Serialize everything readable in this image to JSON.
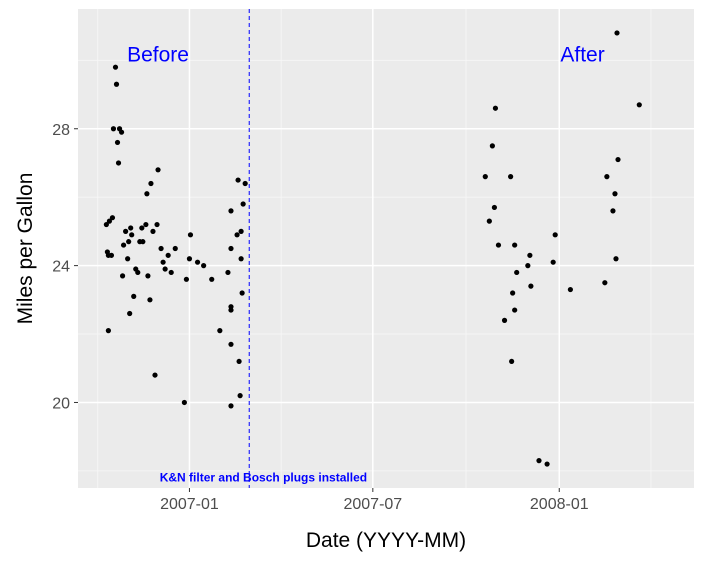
{
  "chart_data": {
    "type": "scatter",
    "title": "",
    "xlabel": "Date (YYYY-MM)",
    "ylabel": "Miles per Gallon",
    "x_range": [
      "2006-09-13",
      "2008-05-13"
    ],
    "y_range": [
      17.5,
      31.5
    ],
    "x_ticks": [
      "2007-01",
      "2007-07",
      "2008-01"
    ],
    "x_tick_values": [
      "2007-01-01",
      "2007-07-01",
      "2008-01-01"
    ],
    "y_ticks": [
      20,
      24,
      28
    ],
    "grid": true,
    "background": "#ebebeb",
    "point_color": "#000000",
    "annotation_color": "#0000ff",
    "points": [
      {
        "x": "2006-10-11",
        "y": 25.2
      },
      {
        "x": "2006-10-12",
        "y": 24.4
      },
      {
        "x": "2006-10-13",
        "y": 24.3
      },
      {
        "x": "2006-10-13",
        "y": 22.1
      },
      {
        "x": "2006-10-14",
        "y": 25.3
      },
      {
        "x": "2006-10-16",
        "y": 24.3
      },
      {
        "x": "2006-10-17",
        "y": 25.4
      },
      {
        "x": "2006-10-18",
        "y": 28.0
      },
      {
        "x": "2006-10-20",
        "y": 29.8
      },
      {
        "x": "2006-10-21",
        "y": 29.3
      },
      {
        "x": "2006-10-22",
        "y": 27.6
      },
      {
        "x": "2006-10-23",
        "y": 27.0
      },
      {
        "x": "2006-10-24",
        "y": 28.0
      },
      {
        "x": "2006-10-26",
        "y": 27.9
      },
      {
        "x": "2006-10-27",
        "y": 23.7
      },
      {
        "x": "2006-10-28",
        "y": 24.6
      },
      {
        "x": "2006-10-30",
        "y": 25.0
      },
      {
        "x": "2006-11-01",
        "y": 24.2
      },
      {
        "x": "2006-11-02",
        "y": 24.7
      },
      {
        "x": "2006-11-03",
        "y": 22.6
      },
      {
        "x": "2006-11-04",
        "y": 25.1
      },
      {
        "x": "2006-11-05",
        "y": 24.9
      },
      {
        "x": "2006-11-07",
        "y": 23.1
      },
      {
        "x": "2006-11-09",
        "y": 23.9
      },
      {
        "x": "2006-11-11",
        "y": 23.8
      },
      {
        "x": "2006-11-13",
        "y": 24.7
      },
      {
        "x": "2006-11-15",
        "y": 25.1
      },
      {
        "x": "2006-11-16",
        "y": 24.7
      },
      {
        "x": "2006-11-19",
        "y": 25.2
      },
      {
        "x": "2006-11-20",
        "y": 26.1
      },
      {
        "x": "2006-11-21",
        "y": 23.7
      },
      {
        "x": "2006-11-23",
        "y": 23.0
      },
      {
        "x": "2006-11-24",
        "y": 26.4
      },
      {
        "x": "2006-11-26",
        "y": 25.0
      },
      {
        "x": "2006-11-28",
        "y": 20.8
      },
      {
        "x": "2006-11-30",
        "y": 25.2
      },
      {
        "x": "2006-12-01",
        "y": 26.8
      },
      {
        "x": "2006-12-04",
        "y": 24.5
      },
      {
        "x": "2006-12-06",
        "y": 24.1
      },
      {
        "x": "2006-12-08",
        "y": 23.9
      },
      {
        "x": "2006-12-11",
        "y": 24.3
      },
      {
        "x": "2006-12-14",
        "y": 23.8
      },
      {
        "x": "2006-12-18",
        "y": 24.5
      },
      {
        "x": "2006-12-27",
        "y": 20.0
      },
      {
        "x": "2006-12-29",
        "y": 23.6
      },
      {
        "x": "2007-01-01",
        "y": 24.2
      },
      {
        "x": "2007-01-02",
        "y": 24.9
      },
      {
        "x": "2007-01-09",
        "y": 24.1
      },
      {
        "x": "2007-01-15",
        "y": 24.0
      },
      {
        "x": "2007-01-23",
        "y": 23.6
      },
      {
        "x": "2007-01-31",
        "y": 22.1
      },
      {
        "x": "2007-02-08",
        "y": 23.8
      },
      {
        "x": "2007-02-11",
        "y": 24.5
      },
      {
        "x": "2007-02-11",
        "y": 25.6
      },
      {
        "x": "2007-02-11",
        "y": 22.8
      },
      {
        "x": "2007-02-11",
        "y": 22.7
      },
      {
        "x": "2007-02-11",
        "y": 21.7
      },
      {
        "x": "2007-02-11",
        "y": 19.9
      },
      {
        "x": "2007-02-17",
        "y": 24.9
      },
      {
        "x": "2007-02-18",
        "y": 26.5
      },
      {
        "x": "2007-02-19",
        "y": 21.2
      },
      {
        "x": "2007-02-20",
        "y": 20.2
      },
      {
        "x": "2007-02-21",
        "y": 24.2
      },
      {
        "x": "2007-02-21",
        "y": 25.0
      },
      {
        "x": "2007-02-22",
        "y": 23.2
      },
      {
        "x": "2007-02-23",
        "y": 25.8
      },
      {
        "x": "2007-02-25",
        "y": 26.4
      },
      {
        "x": "2007-10-20",
        "y": 26.6
      },
      {
        "x": "2007-10-24",
        "y": 25.3
      },
      {
        "x": "2007-10-27",
        "y": 27.5
      },
      {
        "x": "2007-10-29",
        "y": 25.7
      },
      {
        "x": "2007-10-30",
        "y": 28.6
      },
      {
        "x": "2007-11-02",
        "y": 24.6
      },
      {
        "x": "2007-11-08",
        "y": 22.4
      },
      {
        "x": "2007-11-14",
        "y": 26.6
      },
      {
        "x": "2007-11-15",
        "y": 21.2
      },
      {
        "x": "2007-11-16",
        "y": 23.2
      },
      {
        "x": "2007-11-18",
        "y": 22.7
      },
      {
        "x": "2007-11-18",
        "y": 24.6
      },
      {
        "x": "2007-11-20",
        "y": 23.8
      },
      {
        "x": "2007-12-01",
        "y": 24.0
      },
      {
        "x": "2007-12-03",
        "y": 24.3
      },
      {
        "x": "2007-12-04",
        "y": 23.4
      },
      {
        "x": "2007-12-12",
        "y": 18.3
      },
      {
        "x": "2007-12-20",
        "y": 18.2
      },
      {
        "x": "2007-12-26",
        "y": 24.1
      },
      {
        "x": "2007-12-28",
        "y": 24.9
      },
      {
        "x": "2008-01-12",
        "y": 23.3
      },
      {
        "x": "2008-02-15",
        "y": 23.5
      },
      {
        "x": "2008-02-17",
        "y": 26.6
      },
      {
        "x": "2008-02-23",
        "y": 25.6
      },
      {
        "x": "2008-02-25",
        "y": 26.1
      },
      {
        "x": "2008-02-26",
        "y": 24.2
      },
      {
        "x": "2008-02-27",
        "y": 30.8
      },
      {
        "x": "2008-02-28",
        "y": 27.1
      },
      {
        "x": "2008-03-20",
        "y": 28.7
      }
    ],
    "vline": {
      "x": "2007-03-01",
      "style": "dashed",
      "color": "#0000ff"
    },
    "annotations": [
      {
        "text": "Before",
        "x": "2006-12-01",
        "y": 30.2,
        "color": "#0000ff"
      },
      {
        "text": "After",
        "x": "2008-01-24",
        "y": 30.2,
        "color": "#0000ff"
      },
      {
        "text": "K&N filter and Bosch plugs installed",
        "x": "2007-03-15",
        "y": 17.8,
        "color": "#0000ff"
      }
    ]
  }
}
